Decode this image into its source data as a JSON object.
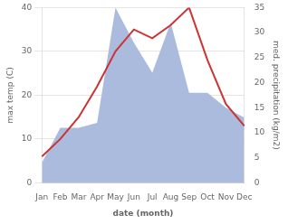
{
  "chart_data": {
    "type": "line",
    "categories": [
      "Jan",
      "Feb",
      "Mar",
      "Apr",
      "May",
      "Jun",
      "Jul",
      "Aug",
      "Sep",
      "Oct",
      "Nov",
      "Dec"
    ],
    "xlabel": "date (month)",
    "ylabel": "max temp (C)",
    "y2label": "med. precipitation (kg/m2)",
    "series": [
      {
        "type": "area",
        "color": "#aabbdd",
        "axis": "y2",
        "values": [
          4,
          11,
          11,
          12,
          35,
          28,
          22,
          32,
          18,
          18,
          15,
          13
        ]
      },
      {
        "type": "line",
        "color": "#cc3333",
        "values": [
          6,
          10,
          15,
          22,
          30,
          35,
          33,
          36,
          40,
          28,
          18,
          13
        ]
      }
    ],
    "ylim": [
      0,
      40
    ],
    "yticks": [
      0,
      10,
      20,
      30,
      40
    ],
    "y2lim": [
      0,
      35
    ],
    "y2ticks": [
      0,
      5,
      10,
      15,
      20,
      25,
      30,
      35
    ],
    "grid": true
  }
}
